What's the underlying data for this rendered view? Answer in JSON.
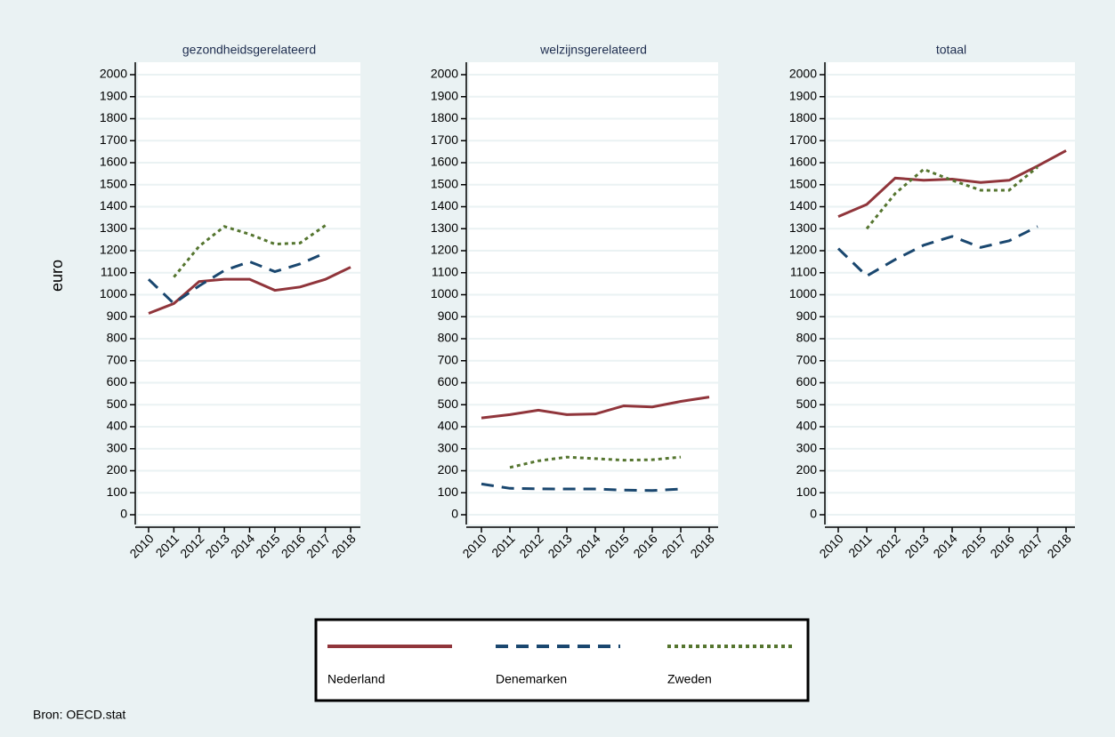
{
  "chart_data": [
    {
      "type": "line",
      "title": "gezondheidsgerelateerd",
      "ylabel": "euro",
      "categories": [
        "2010",
        "2011",
        "2012",
        "2013",
        "2014",
        "2015",
        "2016",
        "2017",
        "2018"
      ],
      "series": [
        {
          "name": "Nederland",
          "color": "#90353b",
          "dash": "solid",
          "values": [
            915,
            960,
            1060,
            1070,
            1070,
            1020,
            1035,
            1070,
            1125
          ]
        },
        {
          "name": "Denemarken",
          "color": "#1a476f",
          "dash": "dashed",
          "values": [
            1070,
            960,
            1040,
            1110,
            1150,
            1105,
            1140,
            1190,
            null
          ]
        },
        {
          "name": "Zweden",
          "color": "#55752f",
          "dash": "dotted",
          "values": [
            null,
            1080,
            1220,
            1310,
            1275,
            1230,
            1235,
            1315,
            null
          ]
        }
      ],
      "ylim": [
        0,
        2000
      ],
      "yticks": [
        0,
        100,
        200,
        300,
        400,
        500,
        600,
        700,
        800,
        900,
        1000,
        1100,
        1200,
        1300,
        1400,
        1500,
        1600,
        1700,
        1800,
        1900,
        2000
      ],
      "grid": true
    },
    {
      "type": "line",
      "title": "welzijnsgerelateerd",
      "categories": [
        "2010",
        "2011",
        "2012",
        "2013",
        "2014",
        "2015",
        "2016",
        "2017",
        "2018"
      ],
      "series": [
        {
          "name": "Nederland",
          "color": "#90353b",
          "dash": "solid",
          "values": [
            440,
            455,
            475,
            455,
            458,
            495,
            490,
            515,
            535
          ]
        },
        {
          "name": "Denemarken",
          "color": "#1a476f",
          "dash": "dashed",
          "values": [
            140,
            120,
            118,
            117,
            117,
            112,
            110,
            117,
            null
          ]
        },
        {
          "name": "Zweden",
          "color": "#55752f",
          "dash": "dotted",
          "values": [
            null,
            215,
            245,
            262,
            255,
            248,
            250,
            262,
            null
          ]
        }
      ],
      "ylim": [
        0,
        2000
      ],
      "yticks": [
        0,
        100,
        200,
        300,
        400,
        500,
        600,
        700,
        800,
        900,
        1000,
        1100,
        1200,
        1300,
        1400,
        1500,
        1600,
        1700,
        1800,
        1900,
        2000
      ],
      "grid": true
    },
    {
      "type": "line",
      "title": "totaal",
      "categories": [
        "2010",
        "2011",
        "2012",
        "2013",
        "2014",
        "2015",
        "2016",
        "2017",
        "2018"
      ],
      "series": [
        {
          "name": "Nederland",
          "color": "#90353b",
          "dash": "solid",
          "values": [
            1355,
            1410,
            1530,
            1520,
            1525,
            1510,
            1520,
            1585,
            1655
          ]
        },
        {
          "name": "Denemarken",
          "color": "#1a476f",
          "dash": "dashed",
          "values": [
            1210,
            1085,
            1160,
            1225,
            1265,
            1215,
            1245,
            1310,
            null
          ]
        },
        {
          "name": "Zweden",
          "color": "#55752f",
          "dash": "dotted",
          "values": [
            null,
            1300,
            1460,
            1570,
            1520,
            1475,
            1475,
            1580,
            null
          ]
        }
      ],
      "ylim": [
        0,
        2000
      ],
      "yticks": [
        0,
        100,
        200,
        300,
        400,
        500,
        600,
        700,
        800,
        900,
        1000,
        1100,
        1200,
        1300,
        1400,
        1500,
        1600,
        1700,
        1800,
        1900,
        2000
      ],
      "grid": true
    }
  ],
  "note": "Bron: OECD.stat"
}
